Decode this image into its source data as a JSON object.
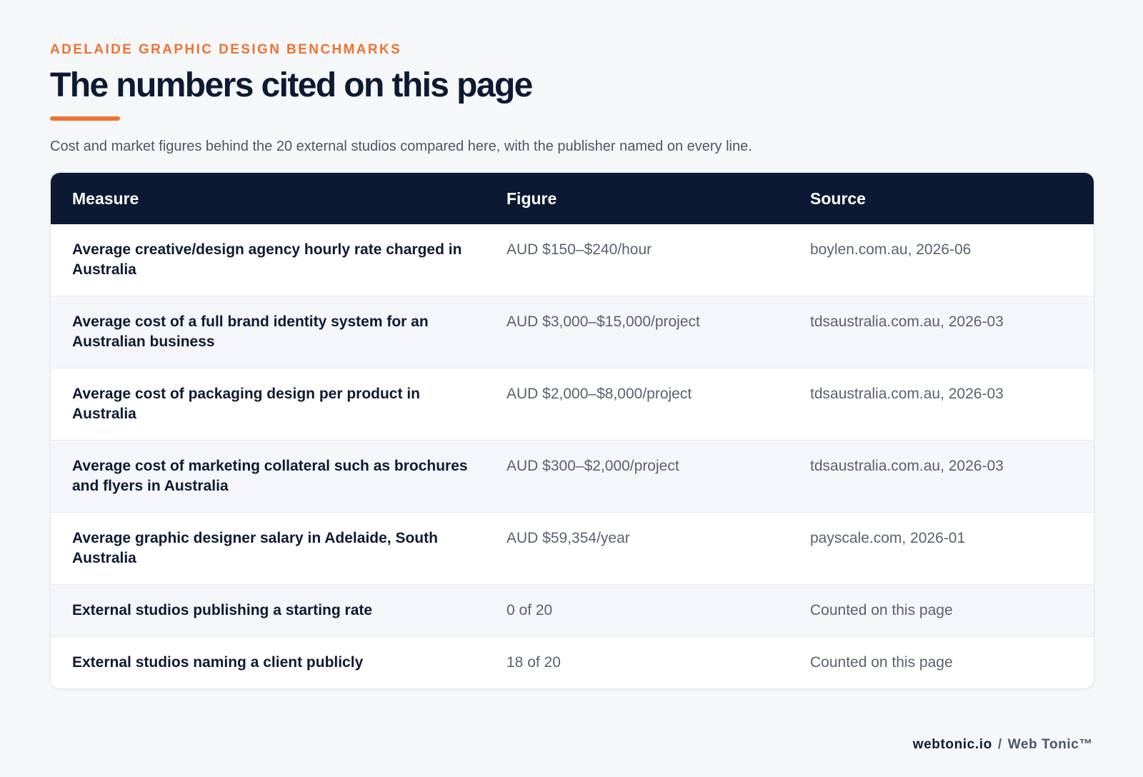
{
  "header": {
    "eyebrow": "ADELAIDE GRAPHIC DESIGN BENCHMARKS",
    "title": "The numbers cited on this page",
    "subtitle": "Cost and market figures behind the 20 external studios compared here, with the publisher named on every line."
  },
  "table": {
    "columns": [
      "Measure",
      "Figure",
      "Source"
    ],
    "rows": [
      {
        "measure": "Average creative/design agency hourly rate charged in Australia",
        "figure": "AUD $150–$240/hour",
        "source": "boylen.com.au, 2026-06"
      },
      {
        "measure": "Average cost of a full brand identity system for an Australian business",
        "figure": "AUD $3,000–$15,000/project",
        "source": "tdsaustralia.com.au, 2026-03"
      },
      {
        "measure": "Average cost of packaging design per product in Australia",
        "figure": "AUD $2,000–$8,000/project",
        "source": "tdsaustralia.com.au, 2026-03"
      },
      {
        "measure": "Average cost of marketing collateral such as brochures and flyers in Australia",
        "figure": "AUD $300–$2,000/project",
        "source": "tdsaustralia.com.au, 2026-03"
      },
      {
        "measure": "Average graphic designer salary in Adelaide, South Australia",
        "figure": "AUD $59,354/year",
        "source": "payscale.com, 2026-01"
      },
      {
        "measure": "External studios publishing a starting rate",
        "figure": "0 of 20",
        "source": "Counted on this page"
      },
      {
        "measure": "External studios naming a client publicly",
        "figure": "18 of 20",
        "source": "Counted on this page"
      }
    ]
  },
  "footer": {
    "domain": "webtonic.io",
    "separator": "/",
    "brand": "Web Tonic™"
  },
  "colors": {
    "accent": "#f07230",
    "header_bg": "#0c1933",
    "title": "#0e1a33",
    "page_bg": "#f6f7f9"
  }
}
